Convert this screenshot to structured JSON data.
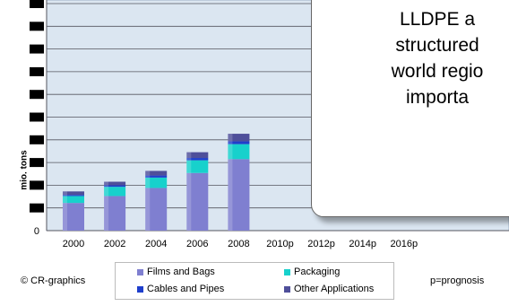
{
  "chart_data": {
    "type": "bar",
    "stacked": true,
    "ylabel": "mio. tons",
    "xlabel": "",
    "categories": [
      "2000",
      "2002",
      "2004",
      "2006",
      "2008",
      "2010p",
      "2012p",
      "2014p",
      "2016p"
    ],
    "series": [
      {
        "name": "Films and Bags",
        "color": "#7f7fd0",
        "values": [
          12.0,
          15.0,
          18.5,
          25.0,
          31.0,
          null,
          null,
          null,
          null
        ]
      },
      {
        "name": "Packaging",
        "color": "#17d1cc",
        "values": [
          3.0,
          4.0,
          4.5,
          5.5,
          6.5,
          null,
          null,
          null,
          null
        ]
      },
      {
        "name": "Cables and Pipes",
        "color": "#1f3fcc",
        "values": [
          0.5,
          0.7,
          0.9,
          1.0,
          1.2,
          null,
          null,
          null,
          null
        ]
      },
      {
        "name": "Other Applications",
        "color": "#4f4f9a",
        "values": [
          1.5,
          1.5,
          2.0,
          2.5,
          3.3,
          null,
          null,
          null,
          null
        ]
      }
    ],
    "ylim": [
      0,
      100
    ],
    "yticks": [
      0
    ],
    "grid": true,
    "legend_position": "bottom"
  },
  "callout": {
    "lines": [
      "LLDPE a",
      "structured",
      "world regio",
      "importa"
    ]
  },
  "footer": {
    "copyright": "© CR-graphics",
    "note": "p=prognosis"
  },
  "colors": {
    "plot_background": "#dbe6f1",
    "outer_background": "#ffffff",
    "hidden_ticks": "#000000"
  }
}
